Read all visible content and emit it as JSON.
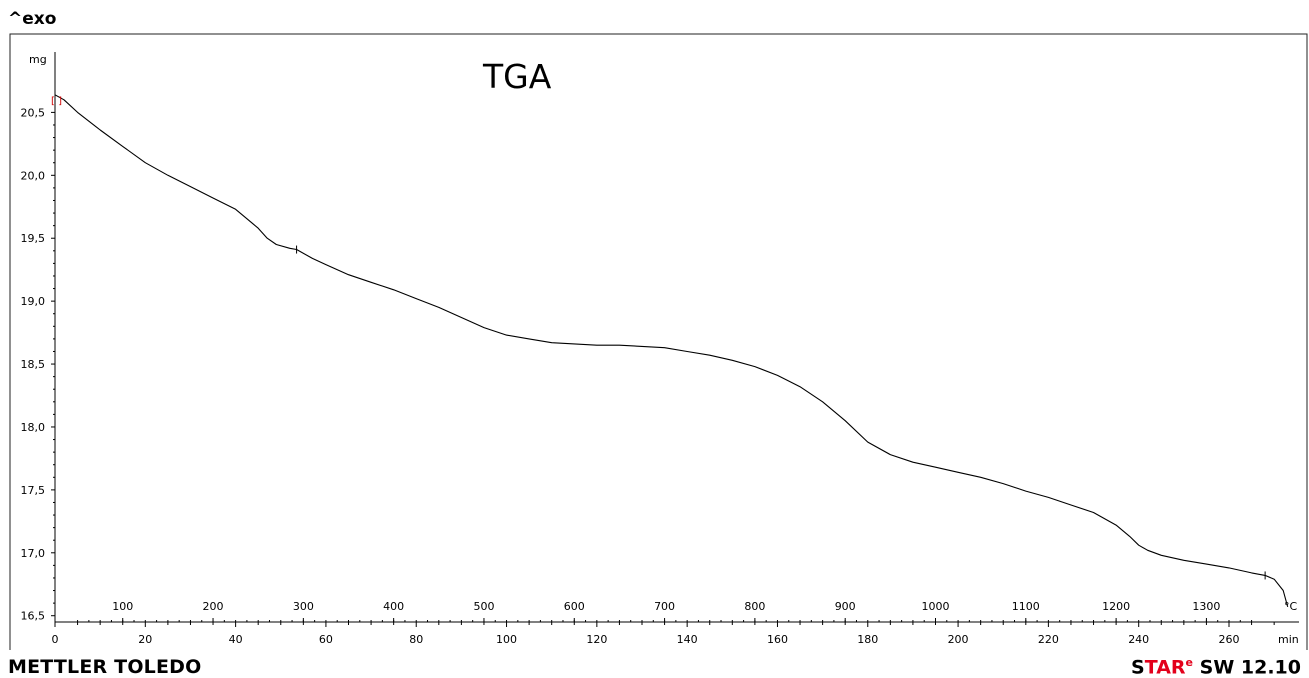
{
  "header": {
    "exo_label": "^exo"
  },
  "footer": {
    "brand": "METTLER TOLEDO",
    "software_s": "S",
    "software_tar": "TAR",
    "software_sup": "e",
    "software_version": " SW 12.10"
  },
  "chart_data": {
    "type": "line",
    "title": "TGA",
    "ylabel": "mg",
    "x_unit": "min",
    "x2_unit": "°C",
    "ylim": [
      16.45,
      20.98
    ],
    "xlim": [
      0,
      270
    ],
    "y_ticks": [
      20.5,
      20.0,
      19.5,
      19.0,
      18.5,
      18.0,
      17.5,
      17.0,
      16.5
    ],
    "y_tick_labels": [
      "20,5",
      "20,0",
      "19,5",
      "19,0",
      "18,5",
      "18,0",
      "17,5",
      "17,0",
      "16,5"
    ],
    "x_ticks": [
      0,
      20,
      40,
      60,
      80,
      100,
      120,
      140,
      160,
      180,
      200,
      220,
      240,
      260
    ],
    "x_tick_labels": [
      "0",
      "20",
      "40",
      "60",
      "80",
      "100",
      "120",
      "140",
      "160",
      "180",
      "200",
      "220",
      "240",
      "260"
    ],
    "x2_ticks_min": [
      15,
      35,
      55,
      75,
      95,
      115,
      135,
      155,
      175,
      195,
      215,
      235,
      255
    ],
    "x2_tick_labels": [
      "100",
      "200",
      "300",
      "400",
      "500",
      "600",
      "700",
      "800",
      "900",
      "1000",
      "1100",
      "1200",
      "1300"
    ],
    "series": [
      {
        "color": "#000000",
        "x": [
          0,
          2,
          5,
          10,
          15,
          20,
          25,
          30,
          35,
          40,
          42,
          45,
          47,
          49,
          52,
          53.5,
          57,
          60,
          65,
          70,
          75,
          80,
          85,
          90,
          95,
          100,
          105,
          110,
          115,
          120,
          125,
          130,
          135,
          140,
          145,
          150,
          155,
          160,
          165,
          170,
          175,
          180,
          185,
          190,
          195,
          200,
          205,
          210,
          215,
          220,
          225,
          230,
          235,
          238,
          240,
          242,
          245,
          250,
          255,
          260,
          265,
          268,
          270,
          272,
          273
        ],
        "y": [
          20.64,
          20.6,
          20.5,
          20.36,
          20.23,
          20.1,
          20.0,
          19.91,
          19.82,
          19.73,
          19.67,
          19.58,
          19.5,
          19.45,
          19.42,
          19.41,
          19.34,
          19.29,
          19.21,
          19.15,
          19.09,
          19.02,
          18.95,
          18.87,
          18.79,
          18.73,
          18.7,
          18.67,
          18.66,
          18.65,
          18.65,
          18.64,
          18.63,
          18.6,
          18.57,
          18.53,
          18.48,
          18.41,
          18.32,
          18.2,
          18.05,
          17.88,
          17.78,
          17.72,
          17.68,
          17.64,
          17.6,
          17.55,
          17.49,
          17.44,
          17.38,
          17.32,
          17.22,
          17.13,
          17.06,
          17.02,
          16.98,
          16.94,
          16.91,
          16.88,
          16.84,
          16.82,
          16.79,
          16.7,
          16.57
        ]
      }
    ]
  }
}
